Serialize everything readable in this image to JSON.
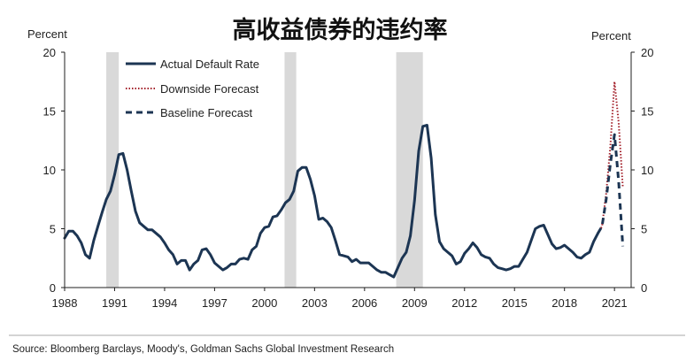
{
  "chart_data": {
    "type": "line",
    "title": "高收益债券的违约率",
    "ylabel_left": "Percent",
    "ylabel_right": "Percent",
    "source": "Source: Bloomberg Barclays, Moody's, Goldman Sachs Global Investment Research",
    "xlim": [
      1988,
      2022
    ],
    "ylim": [
      0,
      20
    ],
    "yticks": [
      0,
      5,
      10,
      15,
      20
    ],
    "ytick_labels": [
      "0",
      "5",
      "10",
      "15",
      "20"
    ],
    "xticks": [
      1988,
      1991,
      1994,
      1997,
      2000,
      2003,
      2006,
      2009,
      2012,
      2015,
      2018,
      2021
    ],
    "xtick_labels": [
      "1988",
      "1991",
      "1994",
      "1997",
      "2000",
      "2003",
      "2006",
      "2009",
      "2012",
      "2015",
      "2018",
      "2021"
    ],
    "legend_position": "top-left",
    "recessions": [
      [
        1990.5,
        1991.25
      ],
      [
        2001.2,
        2001.9
      ],
      [
        2007.9,
        2009.5
      ]
    ],
    "recession_color": "#d9d9d9",
    "series": [
      {
        "name": "Actual Default Rate",
        "style": "solid",
        "color": "#1c3553",
        "x": [
          1988.0,
          1988.25,
          1988.5,
          1988.75,
          1989.0,
          1989.25,
          1989.5,
          1989.75,
          1990.0,
          1990.25,
          1990.5,
          1990.75,
          1991.0,
          1991.25,
          1991.5,
          1991.75,
          1992.0,
          1992.25,
          1992.5,
          1992.75,
          1993.0,
          1993.25,
          1993.5,
          1993.75,
          1994.0,
          1994.25,
          1994.5,
          1994.75,
          1995.0,
          1995.25,
          1995.5,
          1995.75,
          1996.0,
          1996.25,
          1996.5,
          1996.75,
          1997.0,
          1997.25,
          1997.5,
          1997.75,
          1998.0,
          1998.25,
          1998.5,
          1998.75,
          1999.0,
          1999.25,
          1999.5,
          1999.75,
          2000.0,
          2000.25,
          2000.5,
          2000.75,
          2001.0,
          2001.25,
          2001.5,
          2001.75,
          2002.0,
          2002.25,
          2002.5,
          2002.75,
          2003.0,
          2003.25,
          2003.5,
          2003.75,
          2004.0,
          2004.25,
          2004.5,
          2004.75,
          2005.0,
          2005.25,
          2005.5,
          2005.75,
          2006.0,
          2006.25,
          2006.5,
          2006.75,
          2007.0,
          2007.25,
          2007.5,
          2007.75,
          2008.0,
          2008.25,
          2008.5,
          2008.75,
          2009.0,
          2009.25,
          2009.5,
          2009.75,
          2010.0,
          2010.25,
          2010.5,
          2010.75,
          2011.0,
          2011.25,
          2011.5,
          2011.75,
          2012.0,
          2012.25,
          2012.5,
          2012.75,
          2013.0,
          2013.25,
          2013.5,
          2013.75,
          2014.0,
          2014.25,
          2014.5,
          2014.75,
          2015.0,
          2015.25,
          2015.5,
          2015.75,
          2016.0,
          2016.25,
          2016.5,
          2016.75,
          2017.0,
          2017.25,
          2017.5,
          2017.75,
          2018.0,
          2018.25,
          2018.5,
          2018.75,
          2019.0,
          2019.25,
          2019.5,
          2019.75,
          2020.0
        ],
        "y": [
          4.2,
          4.8,
          4.8,
          4.4,
          3.8,
          2.8,
          2.5,
          4.0,
          5.2,
          6.4,
          7.5,
          8.2,
          9.6,
          11.3,
          11.4,
          10.0,
          8.2,
          6.5,
          5.5,
          5.2,
          4.9,
          4.9,
          4.6,
          4.3,
          3.8,
          3.2,
          2.8,
          2.0,
          2.3,
          2.3,
          1.5,
          2.0,
          2.3,
          3.2,
          3.3,
          2.8,
          2.1,
          1.8,
          1.5,
          1.7,
          2.0,
          2.0,
          2.4,
          2.5,
          2.4,
          3.2,
          3.5,
          4.6,
          5.1,
          5.2,
          6.0,
          6.1,
          6.6,
          7.2,
          7.5,
          8.2,
          9.9,
          10.2,
          10.2,
          9.2,
          7.8,
          5.8,
          5.9,
          5.6,
          5.1,
          4.0,
          2.8,
          2.7,
          2.6,
          2.2,
          2.4,
          2.1,
          2.1,
          2.1,
          1.8,
          1.5,
          1.3,
          1.3,
          1.1,
          0.9,
          1.7,
          2.5,
          3.0,
          4.4,
          7.4,
          11.6,
          13.7,
          13.8,
          11.0,
          6.2,
          3.9,
          3.3,
          3.0,
          2.7,
          2.0,
          2.2,
          2.9,
          3.3,
          3.8,
          3.4,
          2.8,
          2.6,
          2.5,
          2.0,
          1.7,
          1.6,
          1.5,
          1.6,
          1.8,
          1.8,
          2.4,
          3.0,
          4.0,
          5.0,
          5.2,
          5.3,
          4.5,
          3.7,
          3.3,
          3.4,
          3.6,
          3.3,
          3.0,
          2.6,
          2.5,
          2.8,
          3.0,
          3.9,
          4.6
        ]
      },
      {
        "name": "Downside Forecast",
        "style": "dotted",
        "color": "#a3202a",
        "x": [
          2020.0,
          2020.25,
          2020.5,
          2020.75,
          2021.0,
          2021.25,
          2021.5
        ],
        "y": [
          4.6,
          5.2,
          8.0,
          12.0,
          17.5,
          14.0,
          8.5
        ]
      },
      {
        "name": "Baseline Forecast",
        "style": "dashed",
        "color": "#1c3553",
        "x": [
          2020.0,
          2020.25,
          2020.5,
          2020.75,
          2021.0,
          2021.25,
          2021.5
        ],
        "y": [
          4.6,
          5.2,
          7.5,
          10.5,
          13.0,
          9.0,
          3.5
        ]
      }
    ]
  }
}
